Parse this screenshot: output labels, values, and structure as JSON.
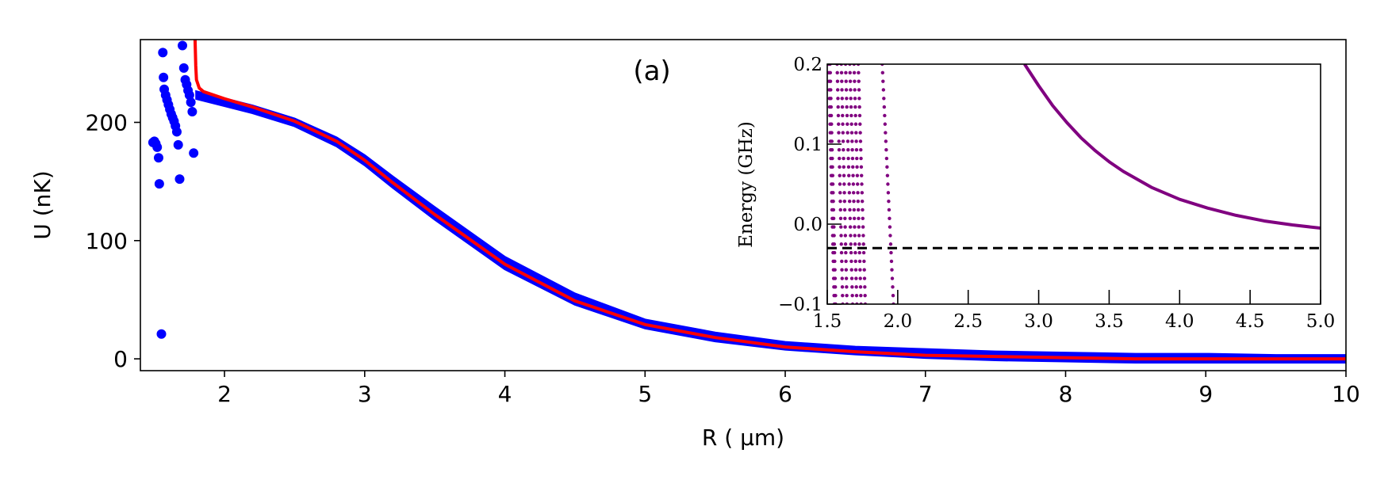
{
  "chart_data": [
    {
      "type": "scatter",
      "panel_label": "(a)",
      "xlabel": "R ( μm)",
      "ylabel": "U (nK)",
      "xlim": [
        1.4,
        10
      ],
      "ylim": [
        -10,
        270
      ],
      "xticks": [
        2,
        3,
        4,
        5,
        6,
        7,
        8,
        9,
        10
      ],
      "xtick_labels": [
        "2",
        "3",
        "4",
        "5",
        "6",
        "7",
        "8",
        "9",
        "10"
      ],
      "yticks": [
        0,
        100,
        200
      ],
      "ytick_labels": [
        "0",
        "100",
        "200"
      ],
      "grid": false,
      "legend": "none",
      "colors": {
        "blue": "#0000ff",
        "red": "#ff0000",
        "purple": "#800080",
        "black": "#000000"
      },
      "blue_band": {
        "x": [
          1.8,
          2.0,
          2.2,
          2.5,
          2.8,
          3.0,
          3.2,
          3.5,
          4.0,
          4.5,
          5.0,
          5.5,
          6.0,
          6.5,
          7.0,
          7.5,
          8.0,
          8.5,
          9.0,
          9.5,
          10.0
        ],
        "y_upper": [
          226,
          220,
          214,
          203,
          187,
          172,
          154,
          128,
          86,
          55,
          33,
          22,
          14,
          10,
          8,
          6,
          5,
          4,
          4,
          3,
          3
        ],
        "y_lower": [
          220,
          214,
          208,
          197,
          180,
          164,
          145,
          118,
          76,
          46,
          26,
          15,
          8,
          4,
          1,
          -1,
          -2,
          -3,
          -3,
          -3,
          -3
        ]
      },
      "blue_points": {
        "x": [
          1.49,
          1.5,
          1.51,
          1.52,
          1.53,
          1.535,
          1.55,
          1.56,
          1.565,
          1.57,
          1.58,
          1.59,
          1.6,
          1.61,
          1.62,
          1.63,
          1.64,
          1.65,
          1.66,
          1.67,
          1.68,
          1.7,
          1.71,
          1.72,
          1.73,
          1.74,
          1.75,
          1.76,
          1.77,
          1.78
        ],
        "y": [
          183,
          184,
          182,
          179,
          170,
          148,
          21,
          259,
          238,
          228,
          223,
          219,
          215,
          211,
          207,
          204,
          201,
          197,
          192,
          181,
          152,
          265,
          246,
          236,
          232,
          227,
          223,
          217,
          209,
          174
        ]
      },
      "red_curve": {
        "x": [
          1.79,
          1.795,
          1.8,
          1.82,
          1.85,
          2.0,
          2.2,
          2.5,
          2.8,
          3.0,
          3.2,
          3.5,
          4.0,
          4.5,
          5.0,
          5.5,
          6.0,
          6.5,
          7.0,
          7.5,
          8.0,
          8.5,
          9.0,
          9.5,
          10.0
        ],
        "y": [
          270,
          248,
          236,
          229,
          226,
          220,
          213,
          201,
          184,
          168,
          149,
          122,
          80,
          49,
          29,
          18,
          10,
          6,
          3,
          2,
          1,
          0,
          0,
          0,
          0
        ]
      }
    },
    {
      "type": "scatter",
      "ylabel": "Energy (GHz)",
      "xlim": [
        1.5,
        5.0
      ],
      "ylim": [
        -0.1,
        0.2
      ],
      "xticks": [
        1.5,
        2.0,
        2.5,
        3.0,
        3.5,
        4.0,
        4.5,
        5.0
      ],
      "xtick_labels": [
        "1.5",
        "2.0",
        "2.5",
        "3.0",
        "3.5",
        "4.0",
        "4.5",
        "5.0"
      ],
      "yticks": [
        -0.1,
        0.0,
        0.1,
        0.2
      ],
      "ytick_labels": [
        "−0.1",
        "0.0",
        "0.1",
        "0.2"
      ],
      "grid": false,
      "legend": "none",
      "dashed_line_y": -0.03,
      "purple_curve": {
        "x": [
          2.9,
          3.0,
          3.1,
          3.2,
          3.3,
          3.4,
          3.5,
          3.6,
          3.8,
          4.0,
          4.2,
          4.4,
          4.6,
          4.8,
          5.0
        ],
        "y": [
          0.2,
          0.173,
          0.148,
          0.127,
          0.108,
          0.092,
          0.078,
          0.066,
          0.046,
          0.031,
          0.02,
          0.011,
          0.004,
          -0.001,
          -0.005
        ]
      },
      "dotted_streaks": [
        {
          "x_top": 1.51,
          "x_bottom": 1.55
        },
        {
          "x_top": 1.52,
          "x_bottom": 1.56
        },
        {
          "x_top": 1.57,
          "x_bottom": 1.61
        },
        {
          "x_top": 1.6,
          "x_bottom": 1.64
        },
        {
          "x_top": 1.63,
          "x_bottom": 1.68
        },
        {
          "x_top": 1.66,
          "x_bottom": 1.71
        },
        {
          "x_top": 1.69,
          "x_bottom": 1.74
        },
        {
          "x_top": 1.72,
          "x_bottom": 1.77
        },
        {
          "x_top": 1.89,
          "x_bottom": 1.97
        }
      ]
    }
  ]
}
